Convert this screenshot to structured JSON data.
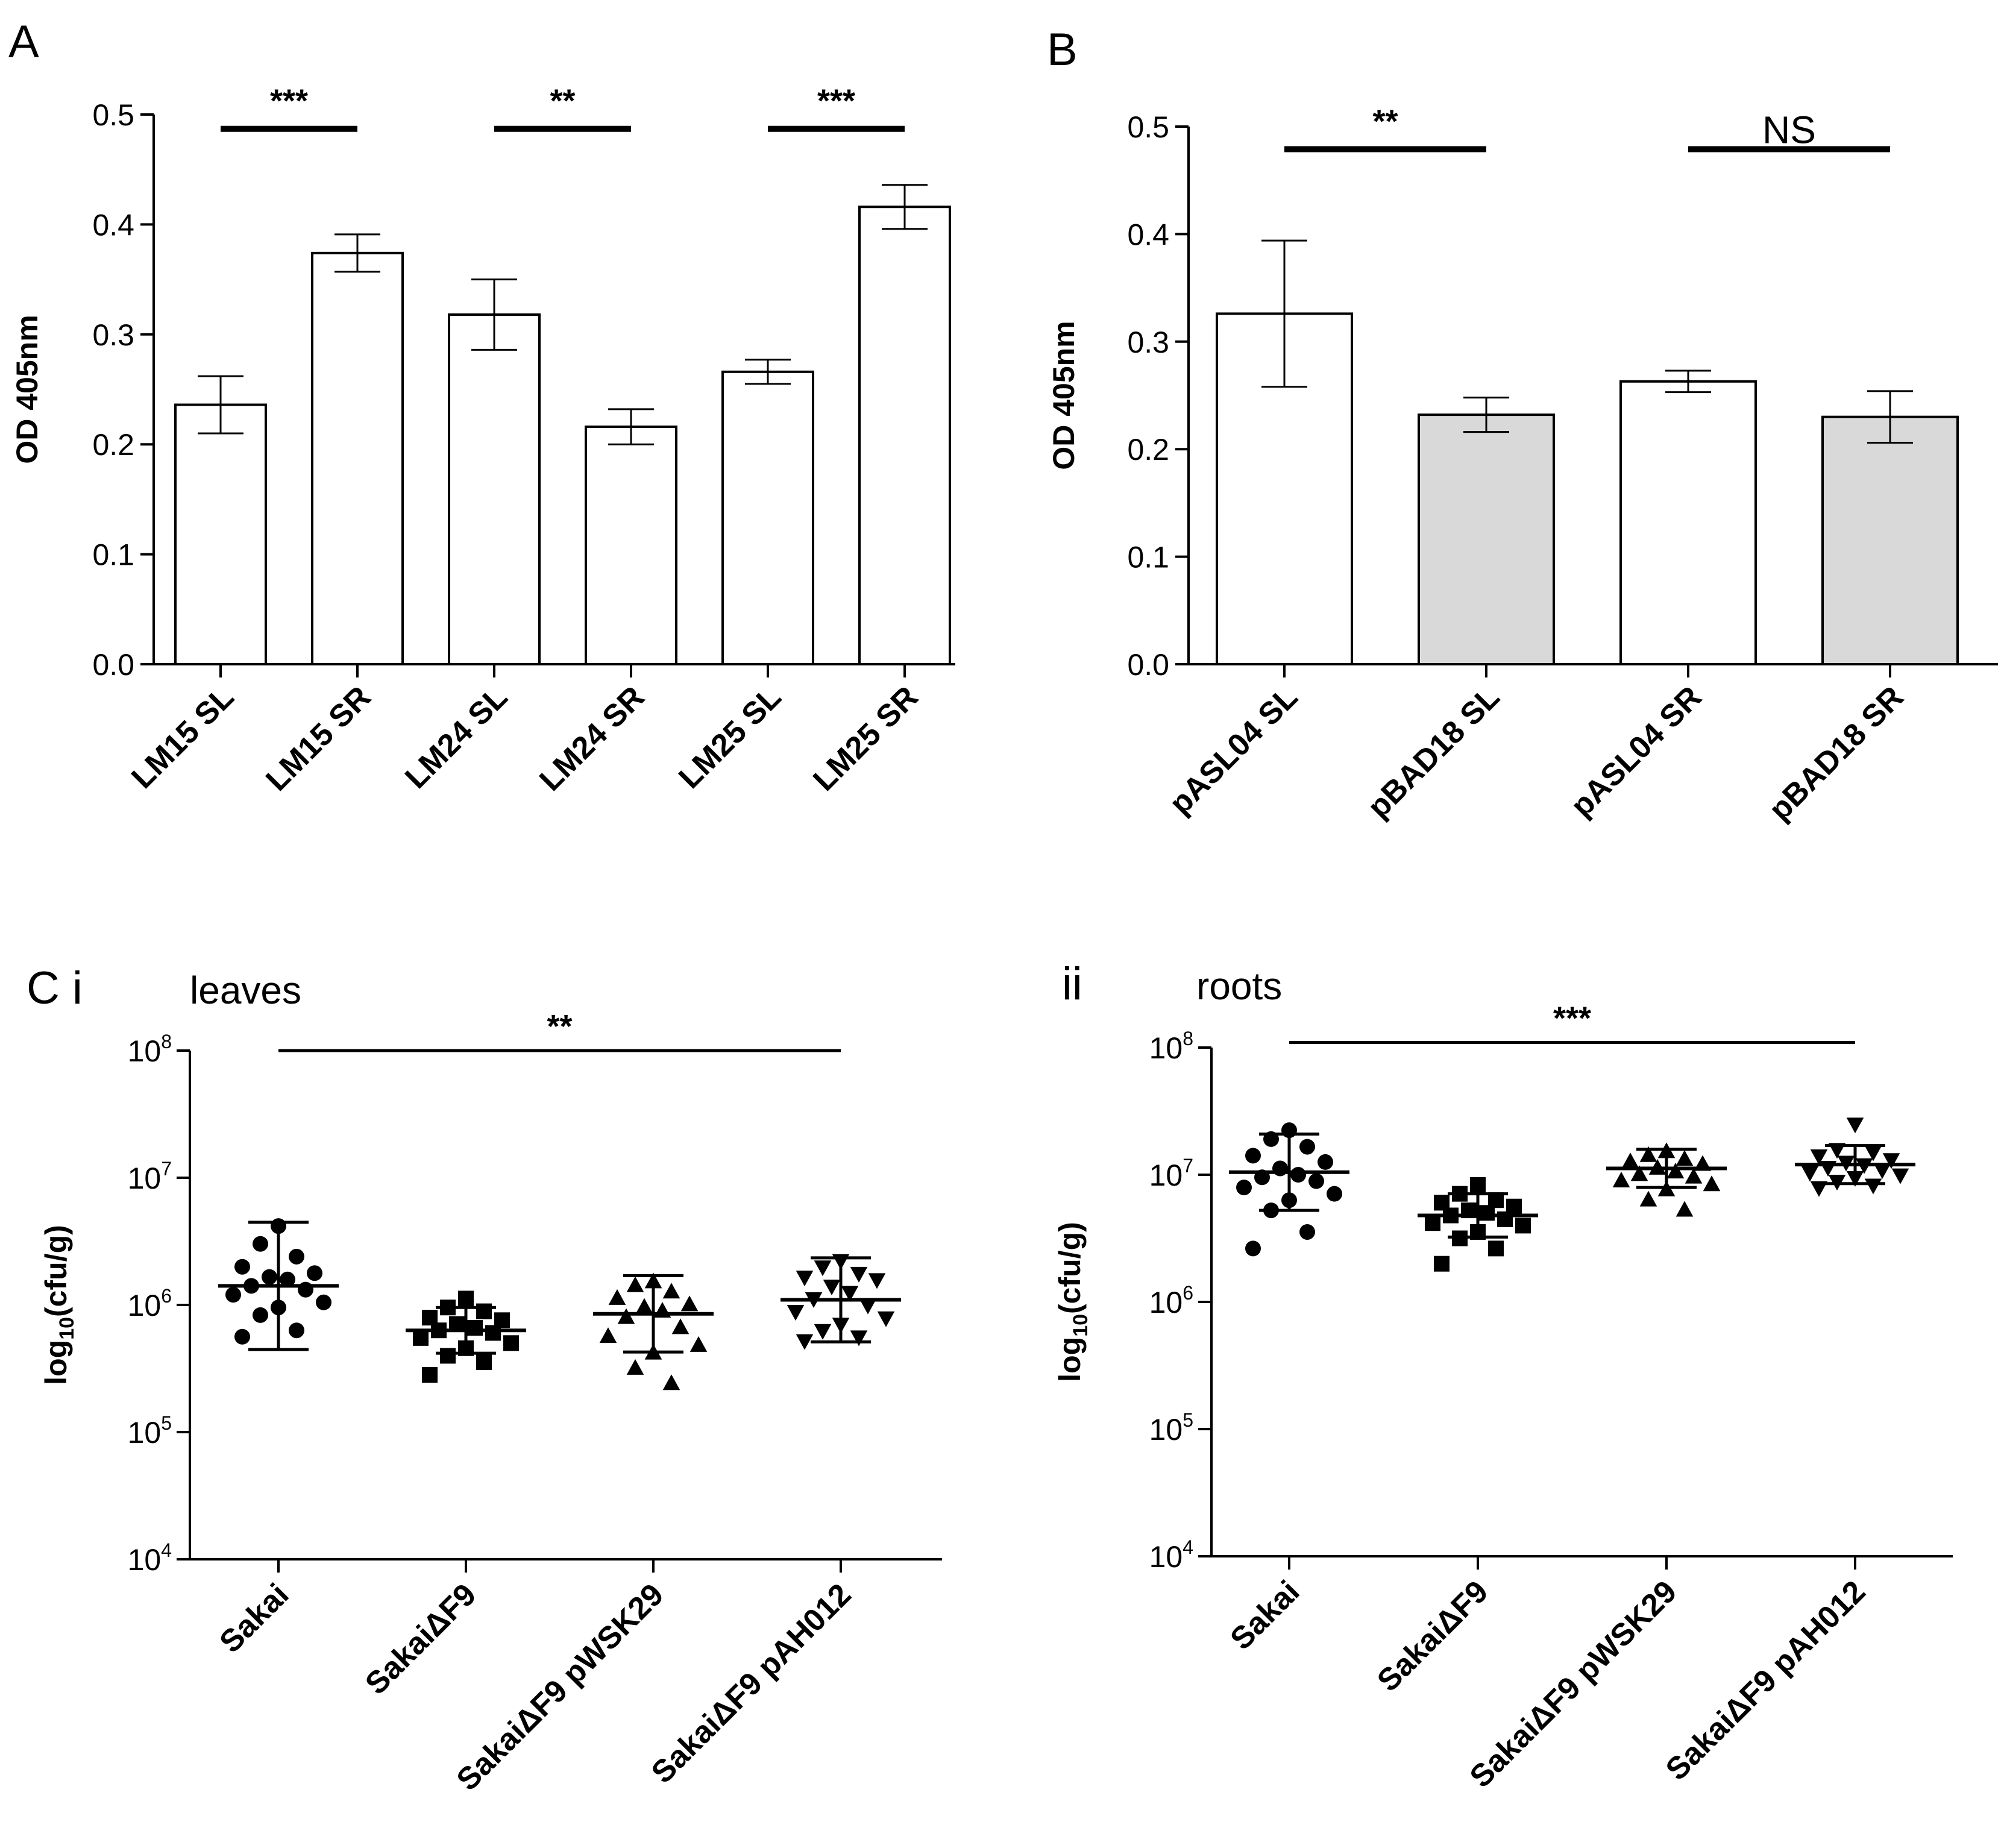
{
  "chart_data": [
    {
      "panel": "A",
      "type": "bar",
      "ylabel": "OD 405nm",
      "ylim": [
        0,
        0.5
      ],
      "yticks": [
        "0.0",
        "0.1",
        "0.2",
        "0.3",
        "0.4",
        "0.5"
      ],
      "categories": [
        "LM15 SL",
        "LM15 SR",
        "LM24 SL",
        "LM24 SR",
        "LM25 SL",
        "LM25 SR"
      ],
      "values": [
        0.236,
        0.374,
        0.318,
        0.216,
        0.266,
        0.416
      ],
      "errors": [
        0.026,
        0.017,
        0.032,
        0.016,
        0.011,
        0.02
      ],
      "fills": [
        "#ffffff",
        "#ffffff",
        "#ffffff",
        "#ffffff",
        "#ffffff",
        "#ffffff"
      ],
      "significance": [
        {
          "from": 0,
          "to": 1,
          "label": "***",
          "y": 0.487
        },
        {
          "from": 2,
          "to": 3,
          "label": "**",
          "y": 0.487
        },
        {
          "from": 4,
          "to": 5,
          "label": "***",
          "y": 0.487
        }
      ]
    },
    {
      "panel": "B",
      "type": "bar",
      "ylabel": "OD 405nm",
      "ylim": [
        0,
        0.5
      ],
      "yticks": [
        "0.0",
        "0.1",
        "0.2",
        "0.3",
        "0.4",
        "0.5"
      ],
      "categories": [
        "pASL04 SL",
        "pBAD18 SL",
        "pASL04 SR",
        "pBAD18 SR"
      ],
      "values": [
        0.326,
        0.232,
        0.263,
        0.23
      ],
      "errors": [
        0.068,
        0.016,
        0.01,
        0.024
      ],
      "fills": [
        "#ffffff",
        "#d9d9d9",
        "#ffffff",
        "#d9d9d9"
      ],
      "significance": [
        {
          "from": 0,
          "to": 1,
          "label": "**",
          "y": 0.479
        },
        {
          "from": 2,
          "to": 3,
          "label": "NS",
          "y": 0.479
        }
      ]
    },
    {
      "panel": "C i",
      "subtitle": "leaves",
      "type": "scatter",
      "ylabel": "log10(cfu/g)",
      "yscale": "log10",
      "ylim_exp": [
        4,
        8
      ],
      "ytick_base": "10",
      "ytick_exps": [
        "4",
        "5",
        "6",
        "7",
        "8"
      ],
      "categories": [
        "Sakai",
        "SakaiΔF9",
        "SakaiΔF9 pWSK29",
        "SakaiΔF9 pAH012"
      ],
      "markers": [
        "circle",
        "square",
        "triangle-up",
        "triangle-down"
      ],
      "mean_log": [
        6.15,
        5.8,
        5.93,
        6.04
      ],
      "sd_log": [
        0.5,
        0.18,
        0.3,
        0.33
      ],
      "points_log": [
        [
          6.62,
          6.48,
          6.38,
          6.3,
          6.25,
          6.22,
          6.2,
          6.15,
          6.12,
          6.08,
          6.02,
          5.98,
          5.92,
          5.8,
          5.75
        ],
        [
          6.05,
          5.98,
          5.95,
          5.9,
          5.88,
          5.85,
          5.82,
          5.8,
          5.78,
          5.74,
          5.7,
          5.66,
          5.6,
          5.55,
          5.45
        ],
        [
          6.18,
          6.15,
          6.1,
          6.05,
          6.0,
          5.98,
          5.95,
          5.9,
          5.82,
          5.75,
          5.68,
          5.62,
          5.5,
          5.38
        ],
        [
          6.35,
          6.3,
          6.25,
          6.22,
          6.2,
          6.15,
          6.1,
          6.05,
          6.0,
          5.95,
          5.9,
          5.85,
          5.8,
          5.75,
          5.72
        ]
      ],
      "significance": [
        {
          "from": 0,
          "to": 3,
          "label": "**",
          "y_log": 8.0
        }
      ]
    },
    {
      "panel": "ii",
      "subtitle": "roots",
      "type": "scatter",
      "ylabel": "log10(cfu/g)",
      "yscale": "log10",
      "ylim_exp": [
        4,
        8
      ],
      "ytick_base": "10",
      "ytick_exps": [
        "4",
        "5",
        "6",
        "7",
        "8"
      ],
      "categories": [
        "Sakai",
        "SakaiΔF9",
        "SakaiΔF9 pWSK29",
        "SakaiΔF9 pAH012"
      ],
      "markers": [
        "circle",
        "square",
        "triangle-up",
        "triangle-down"
      ],
      "mean_log": [
        7.02,
        6.68,
        7.05,
        7.08
      ],
      "sd_log": [
        0.3,
        0.17,
        0.15,
        0.15
      ],
      "points_log": [
        [
          7.35,
          7.28,
          7.22,
          7.15,
          7.1,
          7.05,
          7.0,
          6.98,
          6.95,
          6.9,
          6.85,
          6.8,
          6.72,
          6.55,
          6.42
        ],
        [
          6.92,
          6.85,
          6.8,
          6.78,
          6.75,
          6.72,
          6.7,
          6.68,
          6.65,
          6.62,
          6.6,
          6.55,
          6.5,
          6.42,
          6.3
        ],
        [
          7.18,
          7.15,
          7.12,
          7.1,
          7.08,
          7.05,
          7.02,
          7.0,
          6.98,
          6.95,
          6.92,
          6.88,
          6.8,
          6.72
        ],
        [
          7.4,
          7.2,
          7.18,
          7.15,
          7.12,
          7.1,
          7.08,
          7.06,
          7.04,
          7.02,
          7.0,
          6.98,
          6.95,
          6.92,
          6.9
        ]
      ],
      "significance": [
        {
          "from": 0,
          "to": 3,
          "label": "***",
          "y_log": 8.04
        }
      ]
    }
  ]
}
